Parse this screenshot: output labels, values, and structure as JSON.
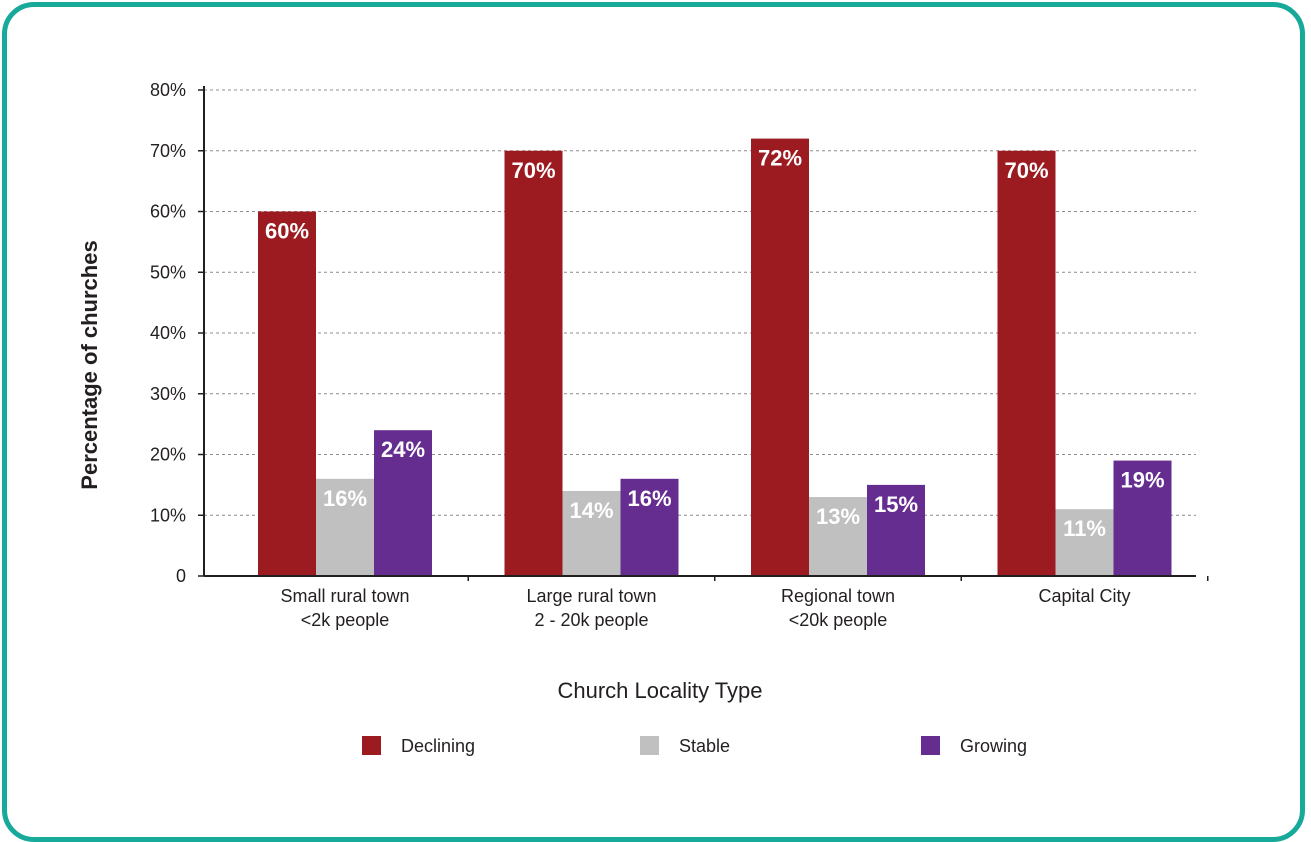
{
  "chart_data": {
    "type": "bar",
    "categories": [
      [
        "Small rural town",
        "<2k people"
      ],
      [
        "Large rural town",
        "2 - 20k people"
      ],
      [
        "Regional town",
        "<20k people"
      ],
      [
        "Capital City"
      ]
    ],
    "series": [
      {
        "name": "Declining",
        "color": "#9b1b20",
        "values": [
          60,
          70,
          72,
          70
        ],
        "labels": [
          "60%",
          "70%",
          "72%",
          "70%"
        ]
      },
      {
        "name": "Stable",
        "color": "#c0c0c0",
        "values": [
          16,
          14,
          13,
          11
        ],
        "labels": [
          "16%",
          "14%",
          "13%",
          "11%"
        ]
      },
      {
        "name": "Growing",
        "color": "#662d91",
        "values": [
          24,
          16,
          15,
          19
        ],
        "labels": [
          "24%",
          "16%",
          "15%",
          "19%"
        ]
      }
    ],
    "xlabel": "Church Locality Type",
    "ylabel": "Percentage of churches",
    "ylim": [
      0,
      80
    ],
    "yticks": [
      {
        "value": 0,
        "label": "0"
      },
      {
        "value": 10,
        "label": "10%"
      },
      {
        "value": 20,
        "label": "20%"
      },
      {
        "value": 30,
        "label": "30%"
      },
      {
        "value": 40,
        "label": "40%"
      },
      {
        "value": 50,
        "label": "50%"
      },
      {
        "value": 60,
        "label": "60%"
      },
      {
        "value": 70,
        "label": "70%"
      },
      {
        "value": 80,
        "label": "80%"
      }
    ],
    "grid": true,
    "legend": "bottom-center",
    "frame_color": "#17aa9a"
  }
}
